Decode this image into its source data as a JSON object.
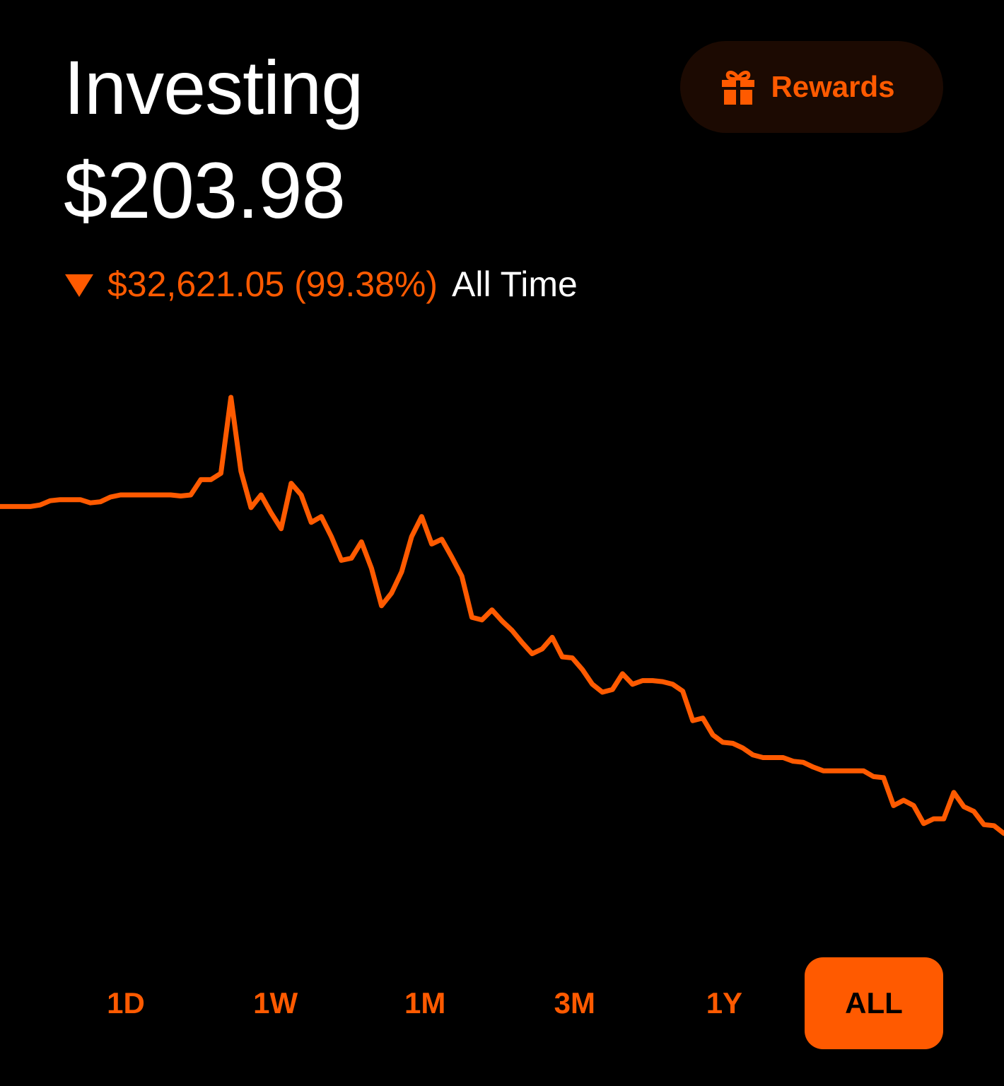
{
  "header": {
    "title": "Investing",
    "balance": "$203.98",
    "change": {
      "direction": "down",
      "direction_icon": "triangle-down-icon",
      "amount_text": "$32,621.05 (99.38%)",
      "period_text": "All Time"
    }
  },
  "rewards": {
    "label": "Rewards",
    "icon": "gift-icon"
  },
  "colors": {
    "background": "#000000",
    "accent": "#ff5a00",
    "rewards_background": "#1c0a02",
    "text": "#ffffff"
  },
  "chart_data": {
    "type": "line",
    "title": "",
    "xlabel": "",
    "ylabel": "",
    "grid": false,
    "axes_visible": false,
    "color": "#ff5a00",
    "ylim": [
      0,
      100
    ],
    "series": [
      {
        "name": "",
        "values": [
          79.3,
          79.3,
          79.3,
          79.3,
          79.6,
          80.4,
          80.6,
          80.6,
          80.6,
          80.0,
          80.2,
          81.1,
          81.5,
          81.5,
          81.5,
          81.5,
          81.5,
          81.5,
          81.3,
          81.5,
          84.4,
          84.4,
          85.6,
          100.0,
          86.0,
          79.1,
          81.5,
          78.1,
          75.1,
          83.7,
          81.5,
          76.3,
          77.4,
          73.6,
          69.1,
          69.5,
          72.6,
          67.6,
          60.5,
          62.9,
          66.9,
          73.6,
          77.4,
          72.2,
          73.1,
          69.7,
          66.1,
          58.3,
          57.8,
          59.7,
          57.6,
          55.8,
          53.5,
          51.4,
          52.3,
          54.5,
          50.8,
          50.6,
          48.4,
          45.6,
          44.1,
          44.6,
          47.6,
          45.6,
          46.3,
          46.3,
          46.1,
          45.6,
          44.3,
          38.7,
          39.2,
          36.0,
          34.6,
          34.4,
          33.5,
          32.2,
          31.7,
          31.7,
          31.7,
          31.0,
          30.8,
          29.9,
          29.2,
          29.2,
          29.2,
          29.2,
          29.2,
          28.1,
          27.9,
          22.6,
          23.6,
          22.6,
          19.2,
          20.1,
          20.1,
          25.1,
          22.4,
          21.5,
          19.0,
          18.8,
          17.3
        ]
      }
    ]
  },
  "time_range": {
    "selected": "ALL",
    "options": [
      "1D",
      "1W",
      "1M",
      "3M",
      "1Y",
      "ALL"
    ]
  }
}
